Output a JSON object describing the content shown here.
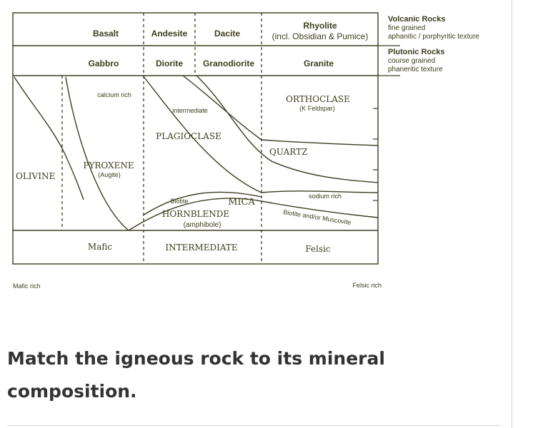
{
  "volcanic": {
    "rocks": [
      "Basalt",
      "Andesite",
      "Dacite"
    ],
    "rhyolite": "Rhyolite",
    "rhyolite_note": "(incl. Obsidian & Pumice)",
    "heading": "Volcanic Rocks",
    "texture_1": "fine grained",
    "texture_2": "aphanitic / porphyritic texture"
  },
  "plutonic": {
    "rocks": [
      "Gabbro",
      "Diorite",
      "Granodiorite",
      "Granite"
    ],
    "heading": "Plutonic Rocks",
    "texture_1": "course grained",
    "texture_2": "phaneritic texture"
  },
  "minerals": {
    "olivine": "OLIVINE",
    "pyroxene": "PYROXENE",
    "pyroxene_sub": "(Augite)",
    "calcium_rich": "calcium rich",
    "intermediate": "intermediate",
    "plagioclase": "PLAGIOCLASE",
    "orthoclase": "ORTHOCLASE",
    "orthoclase_sub": "(K Feldspar)",
    "quartz": "QUARTZ",
    "sodium_rich": "sodium rich",
    "biotite": "Biotite",
    "mica": "MICA",
    "hornblende": "HORNBLENDE",
    "hornblende_sub": "(amphibole)",
    "biotite_muscovite": "Biotite and/or Muscovite"
  },
  "composition": {
    "mafic": "Mafic",
    "intermediate": "INTERMEDIATE",
    "felsic": "Felsic"
  },
  "axis": {
    "mafic_rich": "Mafic rich",
    "felsic_rich": "Felsic rich"
  },
  "question": "Match the igneous rock to its mineral composition."
}
